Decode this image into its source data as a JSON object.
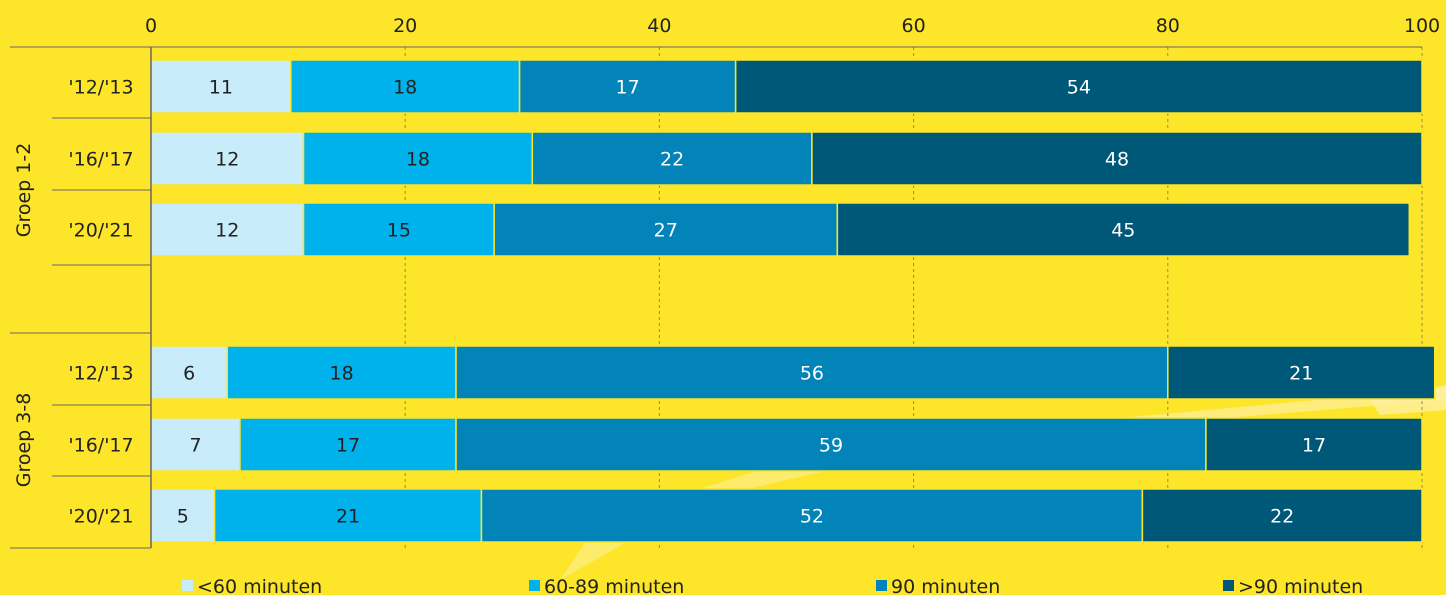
{
  "chart_data": {
    "type": "bar",
    "orientation": "horizontal",
    "stacked": true,
    "xlim": [
      0,
      100
    ],
    "xticks": [
      "0",
      "20",
      "40",
      "60",
      "80",
      "100"
    ],
    "grid": true,
    "legend_position": "bottom",
    "groups": [
      {
        "label": "Groep 1-2",
        "categories": [
          "'12/'13",
          "'16/'17",
          "'20/'21"
        ]
      },
      {
        "label": "Groep 3-8",
        "categories": [
          "'12/'13",
          "'16/'17",
          "'20/'21"
        ]
      }
    ],
    "series": [
      {
        "name": "<60 minuten",
        "color": "#c8ecfa",
        "values": [
          11,
          12,
          12,
          6,
          7,
          5
        ]
      },
      {
        "name": "60-89 minuten",
        "color": "#00b2ec",
        "values": [
          18,
          18,
          15,
          18,
          17,
          21
        ]
      },
      {
        "name": "90 minuten",
        "color": "#0284b8",
        "values": [
          17,
          22,
          27,
          56,
          59,
          52
        ]
      },
      {
        "name": ">90 minuten",
        "color": "#005878",
        "values": [
          54,
          48,
          45,
          21,
          17,
          22
        ]
      }
    ]
  }
}
